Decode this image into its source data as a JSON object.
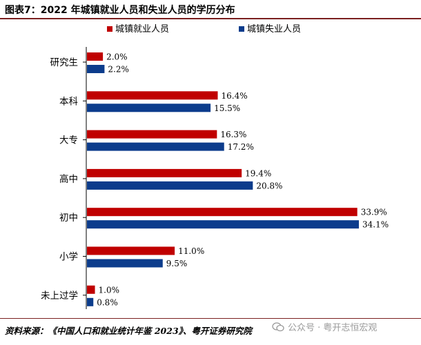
{
  "page": {
    "title": "图表7：2022 年城镇就业人员和失业人员的学历分布",
    "source": "资料来源：《中国人口和就业统计年鉴 2023》、粤开证券研究院",
    "watermark": "公众号 · 粤开志恒宏观"
  },
  "chart_data": {
    "type": "bar",
    "orientation": "horizontal",
    "categories": [
      "研究生",
      "本科",
      "大专",
      "高中",
      "初中",
      "小学",
      "未上过学"
    ],
    "series": [
      {
        "name": "城镇就业人员",
        "values": [
          2.0,
          16.4,
          16.3,
          19.4,
          33.9,
          11.0,
          1.0
        ],
        "color": "#c00000"
      },
      {
        "name": "城镇失业人员",
        "values": [
          2.2,
          15.5,
          17.2,
          20.8,
          34.1,
          9.5,
          0.8
        ],
        "color": "#0c3c8c"
      }
    ],
    "value_format": "percent_1dp",
    "xlim": [
      0,
      34.1
    ],
    "legend_position": "top",
    "grid": false
  }
}
